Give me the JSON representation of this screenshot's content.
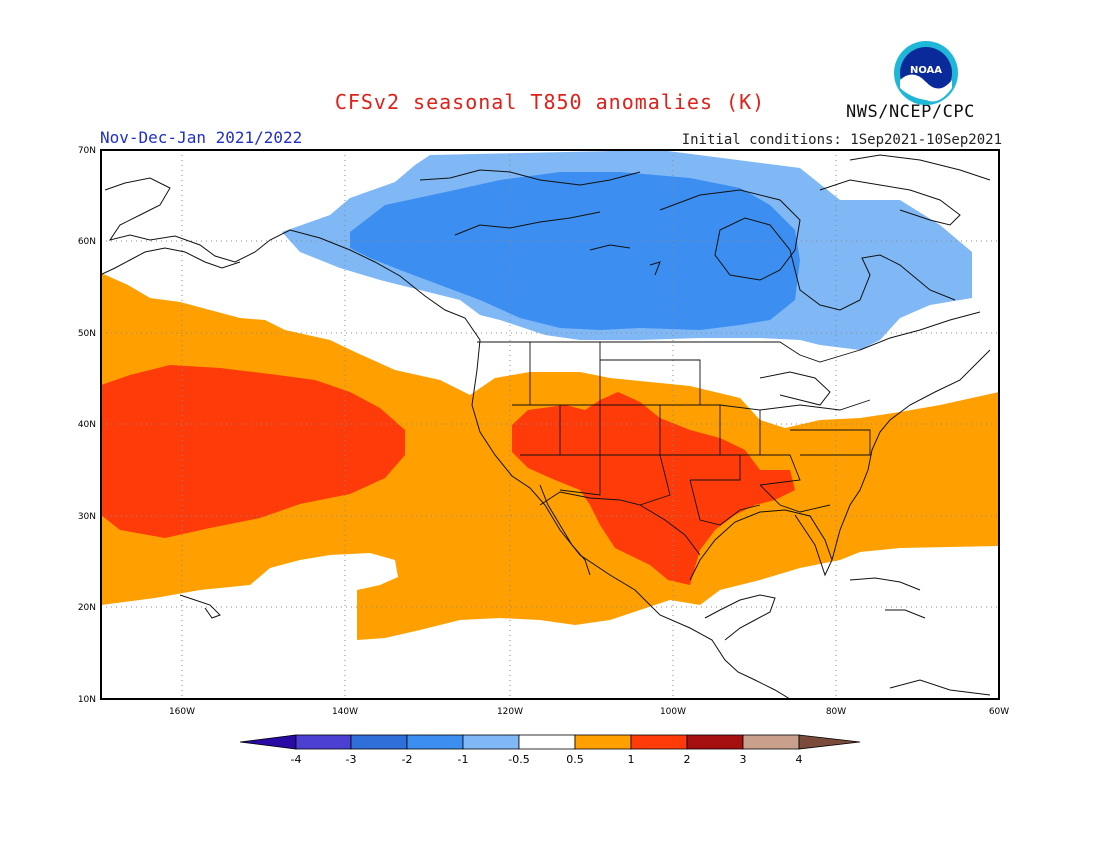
{
  "title": "CFSv2 seasonal T850 anomalies (K)",
  "org": "NWS/NCEP/CPC",
  "logo_text": "NOAA",
  "period": "Nov-Dec-Jan 2021/2022",
  "initial_conditions": "Initial conditions: 1Sep2021-10Sep2021",
  "map": {
    "lat_labels": [
      "70N",
      "60N",
      "50N",
      "40N",
      "30N",
      "20N",
      "10N"
    ],
    "lon_labels": [
      "160W",
      "140W",
      "120W",
      "100W",
      "80W",
      "60W"
    ],
    "extent": {
      "lon_min": -172,
      "lon_max": -60,
      "lat_min": 10,
      "lat_max": 70
    },
    "grid": "dotted"
  },
  "colorbar": {
    "labels": [
      "-4",
      "-3",
      "-2",
      "-1",
      "-0.5",
      "0.5",
      "1",
      "2",
      "3",
      "4"
    ],
    "colors": [
      "#2a0aa5",
      "#4b40d2",
      "#2f6fd9",
      "#3c8ff0",
      "#7fb8f5",
      "#ffffff",
      "#ffa000",
      "#ff3b0a",
      "#a50f0f",
      "#c8a08c",
      "#7a4a3a"
    ]
  },
  "colors": {
    "title": "#e0201a",
    "period": "#1f2fc8",
    "orange": "#ffa000",
    "red": "#ff3b0a",
    "lightblue": "#7fb8f5",
    "blue": "#3c8ff0"
  }
}
